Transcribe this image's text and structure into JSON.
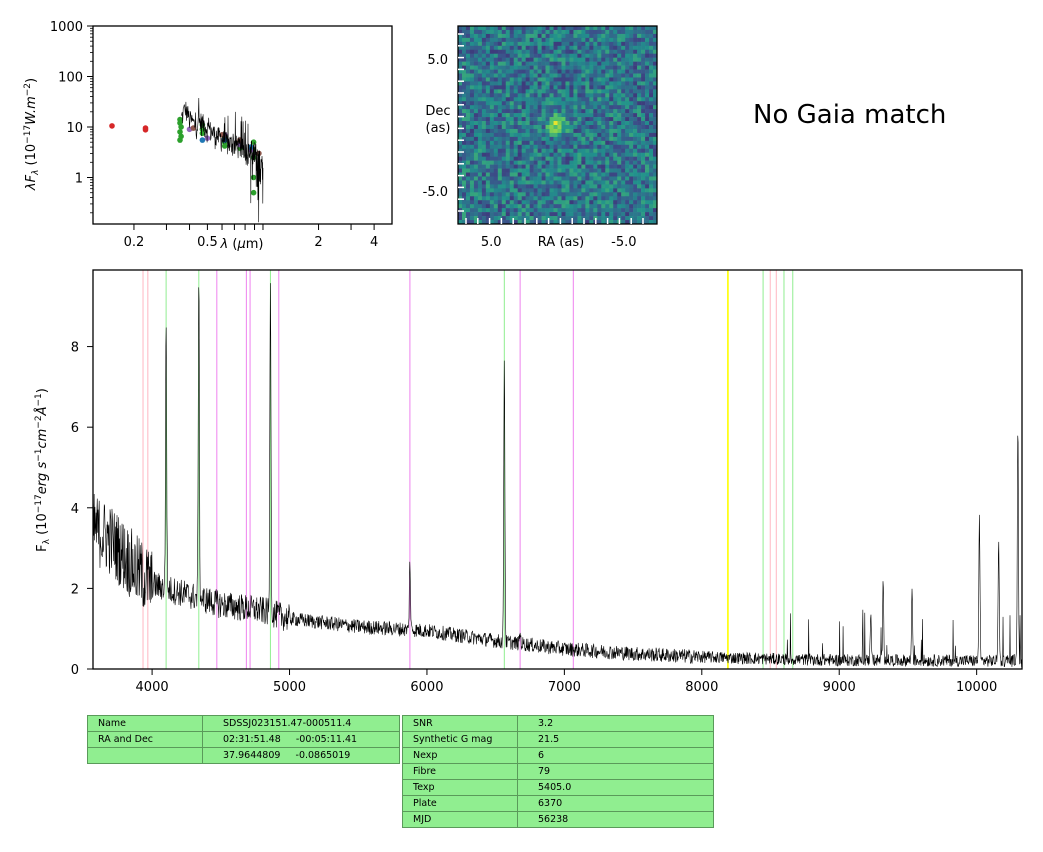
{
  "no_gaia_text": "No Gaia match",
  "info_table_left": [
    {
      "key": "Name",
      "value": "SDSSJ023151.47-000511.4"
    },
    {
      "key": "RA and Dec",
      "value": "02:31:51.48     -00:05:11.41"
    },
    {
      "key": "",
      "value": "37.9644809     -0.0865019"
    }
  ],
  "info_table_right": [
    {
      "key": "SNR",
      "value": "3.2"
    },
    {
      "key": "Synthetic G mag",
      "value": "21.5"
    },
    {
      "key": "Nexp",
      "value": "6"
    },
    {
      "key": "Fibre",
      "value": "79"
    },
    {
      "key": "Texp",
      "value": "5405.0"
    },
    {
      "key": "Plate",
      "value": "6370"
    },
    {
      "key": "MJD",
      "value": "56238"
    }
  ],
  "chart_data": [
    {
      "type": "scatter",
      "ylabel": "λF_λ (10^-17 W.m^-2)",
      "xlabel": "λ (μm)",
      "xscale": "log",
      "yscale": "log",
      "xlim": [
        0.12,
        5.0
      ],
      "ylim": [
        0.12,
        1000
      ],
      "xtick_labels": [
        "0.2",
        "0.5",
        "2",
        "4"
      ],
      "xtick_values": [
        0.2,
        0.5,
        2,
        4
      ],
      "ytick_labels": [
        "1",
        "10",
        "100",
        "1000"
      ],
      "ytick_values": [
        1,
        10,
        100,
        1000
      ],
      "series": [
        {
          "color": "#d62728",
          "points": [
            [
              0.152,
              10.5
            ],
            [
              0.231,
              9.5
            ],
            [
              0.231,
              8.8
            ]
          ]
        },
        {
          "color": "#2ca02c",
          "points": [
            [
              0.355,
              14.0
            ],
            [
              0.355,
              12.0
            ],
            [
              0.36,
              10.0
            ],
            [
              0.355,
              8.0
            ],
            [
              0.36,
              6.5
            ],
            [
              0.355,
              5.5
            ],
            [
              0.47,
              11.0
            ],
            [
              0.47,
              9.0
            ],
            [
              0.47,
              7.5
            ],
            [
              0.62,
              6.5
            ],
            [
              0.62,
              5.0
            ],
            [
              0.62,
              4.2
            ],
            [
              0.75,
              4.8
            ],
            [
              0.75,
              3.8
            ],
            [
              0.89,
              5.0
            ],
            [
              0.89,
              3.5
            ],
            [
              0.89,
              2.5
            ],
            [
              0.89,
              1.0
            ],
            [
              0.89,
              0.5
            ]
          ]
        },
        {
          "color": "#9467bd",
          "points": [
            [
              0.4,
              9.0
            ],
            [
              0.5,
              6.0
            ],
            [
              0.62,
              7.0
            ],
            [
              0.75,
              4.5
            ],
            [
              0.86,
              3.5
            ]
          ]
        },
        {
          "color": "#1f77b4",
          "points": [
            [
              0.47,
              5.5
            ],
            [
              0.62,
              5.5
            ],
            [
              0.86,
              4.0
            ]
          ]
        },
        {
          "color": "#8c564b",
          "points": [
            [
              0.42,
              9.5
            ],
            [
              0.6,
              7.0
            ],
            [
              0.75,
              5.5
            ],
            [
              0.95,
              3.0
            ]
          ]
        }
      ],
      "spectrum_envelope": [
        [
          0.36,
          12
        ],
        [
          0.38,
          20
        ],
        [
          0.4,
          12
        ],
        [
          0.43,
          9
        ],
        [
          0.46,
          11
        ],
        [
          0.5,
          8
        ],
        [
          0.55,
          6
        ],
        [
          0.6,
          5
        ],
        [
          0.65,
          4
        ],
        [
          0.7,
          4
        ],
        [
          0.75,
          3.5
        ],
        [
          0.8,
          3.0
        ],
        [
          0.85,
          2.5
        ],
        [
          0.9,
          2.0
        ],
        [
          0.95,
          1.5
        ],
        [
          1.0,
          1.0
        ]
      ]
    },
    {
      "type": "heatmap",
      "xlabel": "RA (as)",
      "ylabel": "Dec\n(as)",
      "xlim": [
        7.5,
        -7.5
      ],
      "ylim": [
        -7.5,
        7.5
      ],
      "xtick_labels": [
        "5.0",
        "-5.0"
      ],
      "xtick_values": [
        5.0,
        -5.0
      ],
      "ytick_labels": [
        "5.0",
        "-5.0"
      ],
      "ytick_values": [
        5.0,
        -5.0
      ],
      "colormap": "viridis",
      "grid_size": 50,
      "source_center": [
        0.0,
        0.0
      ]
    },
    {
      "type": "line",
      "ylabel": "F_λ (10^-17 erg s^-1 cm^-2 Å^-1)",
      "xlim": [
        3570,
        10330
      ],
      "ylim": [
        0,
        9.9
      ],
      "xtick_labels": [
        "4000",
        "5000",
        "6000",
        "7000",
        "8000",
        "9000",
        "10000"
      ],
      "xtick_values": [
        4000,
        5000,
        6000,
        7000,
        8000,
        9000,
        10000
      ],
      "ytick_labels": [
        "0",
        "2",
        "4",
        "6",
        "8"
      ],
      "ytick_values": [
        0,
        2,
        4,
        6,
        8
      ],
      "line_color": "#000000",
      "continuum_anchors": [
        [
          3570,
          3.5
        ],
        [
          3700,
          3.2
        ],
        [
          3800,
          2.8
        ],
        [
          3900,
          2.4
        ],
        [
          4000,
          2.1
        ],
        [
          4200,
          1.9
        ],
        [
          4500,
          1.6
        ],
        [
          4800,
          1.45
        ],
        [
          5000,
          1.25
        ],
        [
          5500,
          1.05
        ],
        [
          6000,
          0.95
        ],
        [
          6500,
          0.7
        ],
        [
          7000,
          0.5
        ],
        [
          7500,
          0.38
        ],
        [
          8000,
          0.3
        ],
        [
          8500,
          0.25
        ],
        [
          9000,
          0.22
        ],
        [
          10330,
          0.2
        ]
      ],
      "emission_lines": [
        [
          4102,
          8.8
        ],
        [
          4340,
          9.9
        ],
        [
          4861,
          9.9
        ],
        [
          5876,
          2.7
        ],
        [
          6563,
          7.8
        ],
        [
          6678,
          0.9
        ],
        [
          9230,
          1.5
        ],
        [
          9320,
          2.2
        ],
        [
          9530,
          2.0
        ],
        [
          10020,
          3.7
        ],
        [
          10160,
          3.3
        ],
        [
          10300,
          6.1
        ]
      ],
      "marker_lines": [
        {
          "x": 3934,
          "color": "#ffb6c1"
        },
        {
          "x": 3969,
          "color": "#ffb6c1"
        },
        {
          "x": 4102,
          "color": "#90ee90"
        },
        {
          "x": 4340,
          "color": "#90ee90"
        },
        {
          "x": 4471,
          "color": "#ee82ee"
        },
        {
          "x": 4686,
          "color": "#ee82ee"
        },
        {
          "x": 4713,
          "color": "#ee82ee"
        },
        {
          "x": 4861,
          "color": "#90ee90"
        },
        {
          "x": 4922,
          "color": "#ee82ee"
        },
        {
          "x": 5876,
          "color": "#ee82ee"
        },
        {
          "x": 6563,
          "color": "#90ee90"
        },
        {
          "x": 6678,
          "color": "#ee82ee"
        },
        {
          "x": 7065,
          "color": "#ee82ee"
        },
        {
          "x": 8190,
          "color": "#ffff00"
        },
        {
          "x": 8446,
          "color": "#90ee90"
        },
        {
          "x": 8498,
          "color": "#ffb6c1"
        },
        {
          "x": 8542,
          "color": "#ffb6c1"
        },
        {
          "x": 8598,
          "color": "#90ee90"
        },
        {
          "x": 8662,
          "color": "#90ee90"
        }
      ]
    }
  ]
}
